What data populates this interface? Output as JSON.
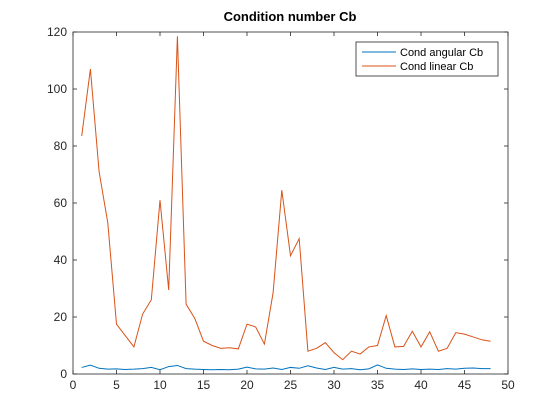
{
  "chart_data": {
    "type": "line",
    "title": "Condition number Cb",
    "xlabel": "",
    "ylabel": "",
    "xlim": [
      0,
      50
    ],
    "ylim": [
      0,
      120
    ],
    "xticks": [
      0,
      5,
      10,
      15,
      20,
      25,
      30,
      35,
      40,
      45,
      50
    ],
    "yticks": [
      0,
      20,
      40,
      60,
      80,
      100,
      120
    ],
    "grid": false,
    "legend_position": "top-right",
    "x": [
      1,
      2,
      3,
      4,
      5,
      6,
      7,
      8,
      9,
      10,
      11,
      12,
      13,
      14,
      15,
      16,
      17,
      18,
      19,
      20,
      21,
      22,
      23,
      24,
      25,
      26,
      27,
      28,
      29,
      30,
      31,
      32,
      33,
      34,
      35,
      36,
      37,
      38,
      39,
      40,
      41,
      42,
      43,
      44,
      45,
      46,
      47,
      48
    ],
    "series": [
      {
        "name": "Cond angular Cb",
        "color": "#0072BD",
        "values": [
          2.3,
          3.1,
          2.0,
          1.7,
          1.8,
          1.6,
          1.7,
          1.9,
          2.3,
          1.5,
          2.6,
          3.0,
          1.9,
          1.7,
          1.6,
          1.5,
          1.6,
          1.5,
          1.7,
          2.4,
          1.8,
          1.7,
          2.1,
          1.6,
          2.3,
          2.0,
          2.9,
          2.1,
          1.6,
          2.3,
          1.7,
          1.9,
          1.5,
          1.8,
          3.2,
          2.0,
          1.7,
          1.6,
          1.8,
          1.6,
          1.7,
          1.6,
          1.9,
          1.7,
          2.0,
          2.1,
          1.9,
          1.9
        ]
      },
      {
        "name": "Cond linear Cb",
        "color": "#D95319",
        "values": [
          83.5,
          107,
          71,
          53,
          17.5,
          13.5,
          9.5,
          21,
          26,
          61,
          29.5,
          118.5,
          24.5,
          19.5,
          11.5,
          10,
          9,
          9.2,
          8.8,
          17.5,
          16.5,
          10.5,
          28.5,
          64.5,
          41.5,
          47.5,
          8,
          9,
          11,
          7.5,
          5,
          8,
          7,
          9.5,
          10,
          20.5,
          9.5,
          9.7,
          15,
          9.5,
          14.8,
          8,
          9,
          14.5,
          14,
          13,
          12,
          11.5
        ]
      }
    ]
  }
}
